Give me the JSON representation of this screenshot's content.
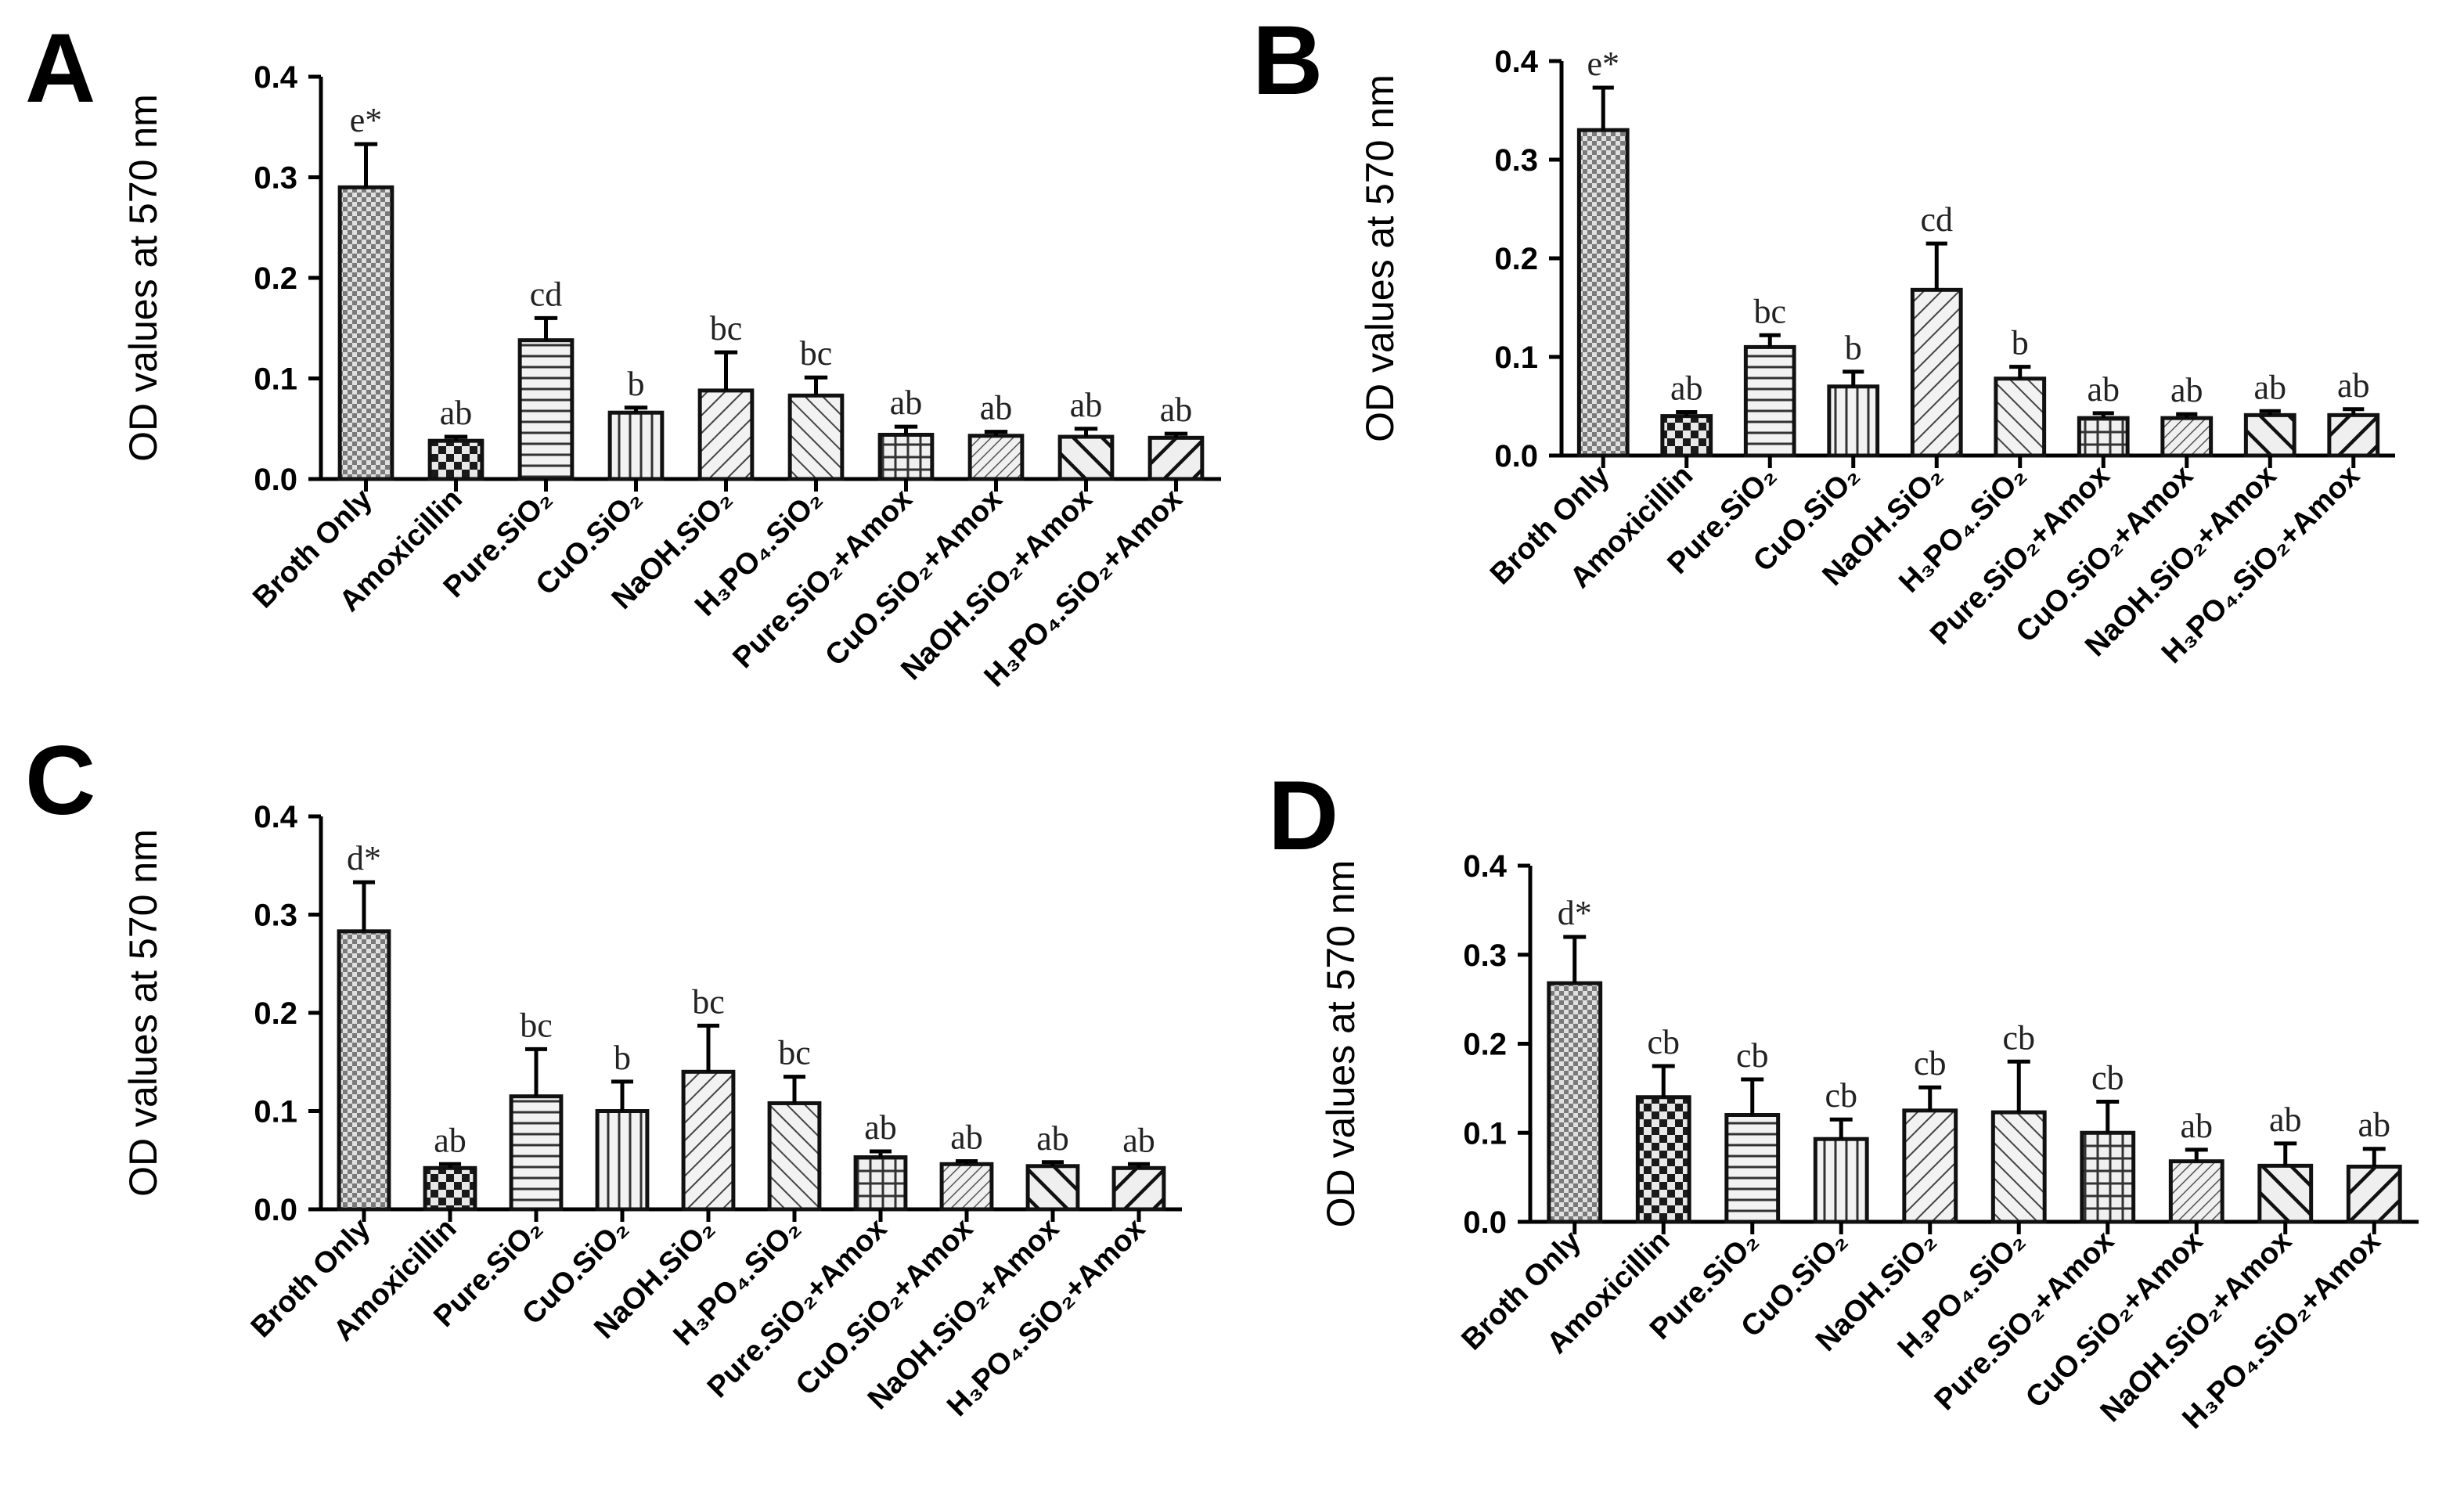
{
  "chart_data": [
    {
      "panel": "A",
      "type": "bar",
      "ylabel": "OD values at 570 nm",
      "ylim": [
        0,
        0.4
      ],
      "yticks": [
        "0.0",
        "0.1",
        "0.2",
        "0.3",
        "0.4"
      ],
      "categories": [
        "Broth Only",
        "Amoxicillin",
        "Pure.SiO₂",
        "CuO.SiO₂",
        "NaOH.SiO₂",
        "H₃PO₄.SiO₂",
        "Pure.SiO₂+Amox",
        "CuO.SiO₂+Amox",
        "NaOH.SiO₂+Amox",
        "H₃PO₄.SiO₂+Amox"
      ],
      "values": [
        0.29,
        0.038,
        0.138,
        0.066,
        0.088,
        0.083,
        0.044,
        0.043,
        0.042,
        0.041
      ],
      "errors": [
        0.043,
        0.004,
        0.022,
        0.005,
        0.038,
        0.018,
        0.008,
        0.004,
        0.008,
        0.004
      ],
      "significance": [
        "e*",
        "ab",
        "cd",
        "b",
        "bc",
        "bc",
        "ab",
        "ab",
        "ab",
        "ab"
      ]
    },
    {
      "panel": "B",
      "type": "bar",
      "ylabel": "OD values at 570 nm",
      "ylim": [
        0,
        0.4
      ],
      "yticks": [
        "0.0",
        "0.1",
        "0.2",
        "0.3",
        "0.4"
      ],
      "categories": [
        "Broth Only",
        "Amoxicillin",
        "Pure.SiO₂",
        "CuO.SiO₂",
        "NaOH.SiO₂",
        "H₃PO₄.SiO₂",
        "Pure.SiO₂+Amox",
        "CuO.SiO₂+Amox",
        "NaOH.SiO₂+Amox",
        "H₃PO₄.SiO₂+Amox"
      ],
      "values": [
        0.33,
        0.04,
        0.11,
        0.07,
        0.168,
        0.078,
        0.038,
        0.038,
        0.041,
        0.041
      ],
      "errors": [
        0.043,
        0.004,
        0.012,
        0.015,
        0.047,
        0.012,
        0.005,
        0.004,
        0.004,
        0.006
      ],
      "significance": [
        "e*",
        "ab",
        "bc",
        "b",
        "cd",
        "b",
        "ab",
        "ab",
        "ab",
        "ab"
      ]
    },
    {
      "panel": "C",
      "type": "bar",
      "ylabel": "OD values at 570 nm",
      "ylim": [
        0,
        0.4
      ],
      "yticks": [
        "0.0",
        "0.1",
        "0.2",
        "0.3",
        "0.4"
      ],
      "categories": [
        "Broth Only",
        "Amoxicillin",
        "Pure.SiO₂",
        "CuO.SiO₂",
        "NaOH.SiO₂",
        "H₃PO₄.SiO₂",
        "Pure.SiO₂+Amox",
        "CuO.SiO₂+Amox",
        "NaOH.SiO₂+Amox",
        "H₃PO₄.SiO₂+Amox"
      ],
      "values": [
        0.283,
        0.042,
        0.115,
        0.1,
        0.14,
        0.108,
        0.053,
        0.046,
        0.044,
        0.042
      ],
      "errors": [
        0.05,
        0.004,
        0.048,
        0.03,
        0.047,
        0.027,
        0.006,
        0.003,
        0.004,
        0.004
      ],
      "significance": [
        "d*",
        "ab",
        "bc",
        "b",
        "bc",
        "bc",
        "ab",
        "ab",
        "ab",
        "ab"
      ]
    },
    {
      "panel": "D",
      "type": "bar",
      "ylabel": "OD values at 570 nm",
      "ylim": [
        0,
        0.4
      ],
      "yticks": [
        "0.0",
        "0.1",
        "0.2",
        "0.3",
        "0.4"
      ],
      "categories": [
        "Broth Only",
        "Amoxicillin",
        "Pure.SiO₂",
        "CuO.SiO₂",
        "NaOH.SiO₂",
        "H₃PO₄.SiO₂",
        "Pure.SiO₂+Amox",
        "CuO.SiO₂+Amox",
        "NaOH.SiO₂+Amox",
        "H₃PO₄.SiO₂+Amox"
      ],
      "values": [
        0.268,
        0.14,
        0.12,
        0.093,
        0.125,
        0.123,
        0.1,
        0.068,
        0.063,
        0.062
      ],
      "errors": [
        0.052,
        0.035,
        0.04,
        0.022,
        0.026,
        0.057,
        0.035,
        0.013,
        0.025,
        0.02
      ],
      "significance": [
        "d*",
        "cb",
        "cb",
        "cb",
        "cb",
        "cb",
        "cb",
        "ab",
        "ab",
        "ab"
      ]
    }
  ]
}
